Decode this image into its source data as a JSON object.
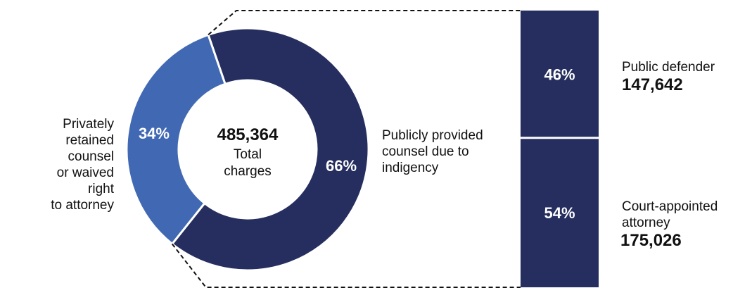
{
  "chart_data": {
    "type": "pie",
    "donut": true,
    "center": {
      "value": "485,364",
      "label_lines": [
        "Total",
        "charges"
      ]
    },
    "slices": [
      {
        "name_lines": [
          "Publicly provided",
          "counsel due to",
          "indigency"
        ],
        "percent": 66,
        "label": "66%",
        "color": "#252e5e"
      },
      {
        "name_lines": [
          "Privately",
          "retained counsel",
          "or waived right",
          "to attorney"
        ],
        "percent": 34,
        "label": "34%",
        "color": "#4169b3"
      }
    ],
    "breakdown": {
      "type": "bar",
      "stacked": true,
      "parent": "Publicly provided counsel due to indigency",
      "segments": [
        {
          "name": "Public defender",
          "name_lines": [
            "Public defender"
          ],
          "percent": 46,
          "label": "46%",
          "value": "147,642",
          "color": "#252e5e"
        },
        {
          "name": "Court-appointed attorney",
          "name_lines": [
            "Court-appointed",
            "attorney"
          ],
          "percent": 54,
          "label": "54%",
          "value": "175,026",
          "color": "#252e5e"
        }
      ]
    }
  }
}
